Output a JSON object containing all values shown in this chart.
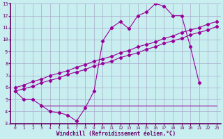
{
  "title": "",
  "xlabel": "Windchill (Refroidissement éolien,°C)",
  "ylabel": "",
  "bg_color": "#c8eef0",
  "line_color": "#990099",
  "grid_color": "#aaaacc",
  "xlim_min": -0.5,
  "xlim_max": 23.5,
  "ylim_min": 3,
  "ylim_max": 13,
  "xticks": [
    0,
    1,
    2,
    3,
    4,
    5,
    6,
    7,
    8,
    9,
    10,
    11,
    12,
    13,
    14,
    15,
    16,
    17,
    18,
    19,
    20,
    21,
    22,
    23
  ],
  "yticks": [
    3,
    4,
    5,
    6,
    7,
    8,
    9,
    10,
    11,
    12,
    13
  ],
  "line_jagged_x": [
    0,
    1,
    2,
    3,
    4,
    5,
    6,
    7,
    8,
    9,
    10,
    11,
    12,
    13,
    14,
    15,
    16,
    17,
    18,
    19,
    20,
    21
  ],
  "line_jagged_y": [
    5.7,
    5.0,
    5.0,
    4.5,
    4.0,
    3.9,
    3.7,
    3.2,
    4.3,
    5.7,
    9.9,
    11.0,
    11.5,
    10.9,
    12.0,
    12.3,
    13.0,
    12.8,
    12.0,
    12.0,
    9.4,
    6.4
  ],
  "line_diagonal_x": [
    0,
    1,
    2,
    3,
    4,
    5,
    6,
    7,
    8,
    9,
    10,
    11,
    12,
    13,
    14,
    15,
    16,
    17,
    18,
    19,
    20,
    21,
    22,
    23
  ],
  "line_diagonal_y": [
    5.7,
    5.9,
    6.1,
    6.4,
    6.6,
    6.8,
    7.1,
    7.3,
    7.5,
    7.8,
    8.0,
    8.2,
    8.5,
    8.7,
    8.9,
    9.2,
    9.4,
    9.7,
    9.9,
    10.1,
    10.4,
    10.6,
    10.8,
    11.1
  ],
  "line_diagonal2_x": [
    0,
    1,
    2,
    3,
    4,
    5,
    6,
    7,
    8,
    9,
    10,
    11,
    12,
    13,
    14,
    15,
    16,
    17,
    18,
    19,
    20,
    21,
    22,
    23
  ],
  "line_diagonal2_y": [
    6.0,
    6.2,
    6.5,
    6.7,
    7.0,
    7.2,
    7.4,
    7.7,
    7.9,
    8.2,
    8.4,
    8.6,
    8.9,
    9.1,
    9.4,
    9.6,
    9.8,
    10.1,
    10.3,
    10.6,
    10.8,
    11.0,
    11.3,
    11.5
  ],
  "line_flat_x": [
    3,
    4,
    5,
    6,
    7,
    8,
    9,
    10,
    11,
    12,
    13,
    14,
    15,
    16,
    17,
    18,
    19,
    20,
    21,
    22,
    23
  ],
  "line_flat_y": [
    4.5,
    4.5,
    4.5,
    4.5,
    4.5,
    4.5,
    4.5,
    4.5,
    4.5,
    4.5,
    4.5,
    4.5,
    4.5,
    4.5,
    4.5,
    4.5,
    4.5,
    4.5,
    4.5,
    4.5,
    4.5
  ]
}
